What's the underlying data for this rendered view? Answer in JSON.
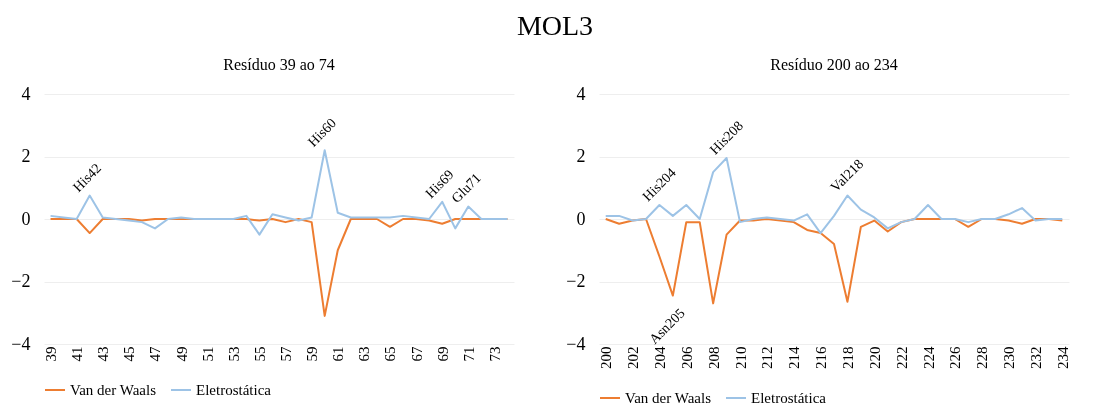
{
  "chart_data": [
    {
      "type": "other",
      "title": "MOL3"
    },
    {
      "type": "line",
      "title": "Resíduo 39 ao 74",
      "categories": [
        "39",
        null,
        "41",
        null,
        "43",
        null,
        "45",
        null,
        "47",
        null,
        "49",
        null,
        "51",
        null,
        "53",
        null,
        "55",
        null,
        "57",
        null,
        "59",
        null,
        "61",
        null,
        "63",
        null,
        "65",
        null,
        "67",
        null,
        "69",
        null,
        "71",
        null,
        "73",
        null
      ],
      "series": [
        {
          "name": "Van der Waals",
          "color": "#ed7d31",
          "values": [
            0,
            0,
            0,
            -0.45,
            0,
            0,
            0,
            -0.05,
            0,
            0,
            0,
            0,
            0,
            0,
            0,
            0,
            -0.05,
            0,
            -0.1,
            0,
            -0.1,
            -3.1,
            -1.0,
            0,
            0,
            0,
            -0.25,
            0,
            0,
            -0.05,
            -0.15,
            0,
            0,
            0,
            0,
            0
          ]
        },
        {
          "name": "Eletrostática",
          "color": "#9dc3e6",
          "values": [
            0.1,
            0.05,
            0,
            0.75,
            0.05,
            0,
            -0.05,
            -0.1,
            -0.3,
            0,
            0.05,
            0,
            0,
            0,
            0,
            0.1,
            -0.5,
            0.15,
            0.05,
            -0.05,
            0.05,
            2.2,
            0.2,
            0.05,
            0.05,
            0.05,
            0.05,
            0.1,
            0.05,
            0,
            0.55,
            -0.3,
            0.4,
            0,
            0,
            0
          ]
        }
      ],
      "ylim": [
        -4,
        4
      ],
      "yticks": [
        -4,
        -2,
        0,
        2,
        4
      ],
      "grid": "y",
      "legend": "bottom",
      "annotations": [
        {
          "text": "His42",
          "y": 0.75
        },
        {
          "text": "His60",
          "y": 2.2
        },
        {
          "text": "His69",
          "y": 0.55
        },
        {
          "text": "Glu71",
          "y": 0.4
        }
      ]
    },
    {
      "type": "line",
      "title": "Resíduo 200 ao 234",
      "categories": [
        "200",
        null,
        "202",
        null,
        "204",
        null,
        "206",
        null,
        "208",
        null,
        "210",
        null,
        "212",
        null,
        "214",
        null,
        "216",
        null,
        "218",
        null,
        "220",
        null,
        "222",
        null,
        "224",
        null,
        "226",
        null,
        "228",
        null,
        "230",
        null,
        "232",
        null,
        "234"
      ],
      "series": [
        {
          "name": "Van der Waals",
          "color": "#ed7d31",
          "values": [
            0,
            -0.15,
            -0.05,
            0,
            -1.2,
            -2.45,
            -0.1,
            -0.1,
            -2.7,
            -0.5,
            -0.05,
            -0.05,
            0,
            -0.05,
            -0.1,
            -0.35,
            -0.45,
            -0.8,
            -2.65,
            -0.25,
            -0.05,
            -0.4,
            -0.1,
            0,
            0,
            0,
            0,
            -0.25,
            0,
            0,
            -0.05,
            -0.15,
            0,
            0,
            -0.05
          ]
        },
        {
          "name": "Eletrostática",
          "color": "#9dc3e6",
          "values": [
            0.1,
            0.1,
            -0.05,
            0,
            0.45,
            0.1,
            0.45,
            0,
            1.5,
            1.95,
            -0.1,
            0,
            0.05,
            0,
            -0.05,
            0.15,
            -0.45,
            0.1,
            0.75,
            0.3,
            0.05,
            -0.3,
            -0.1,
            0,
            0.45,
            0,
            0,
            -0.1,
            0,
            0,
            0.15,
            0.35,
            -0.05,
            0,
            0
          ]
        }
      ],
      "ylim": [
        -4,
        4
      ],
      "yticks": [
        -4,
        -2,
        0,
        2,
        4
      ],
      "grid": "y",
      "legend": "bottom",
      "annotations": [
        {
          "text": "His204",
          "y": 0.45
        },
        {
          "text": "Asn205",
          "y": -2.45
        },
        {
          "text": "His208",
          "y": 1.95
        },
        {
          "text": "Val218",
          "y": 0.75
        }
      ]
    }
  ]
}
